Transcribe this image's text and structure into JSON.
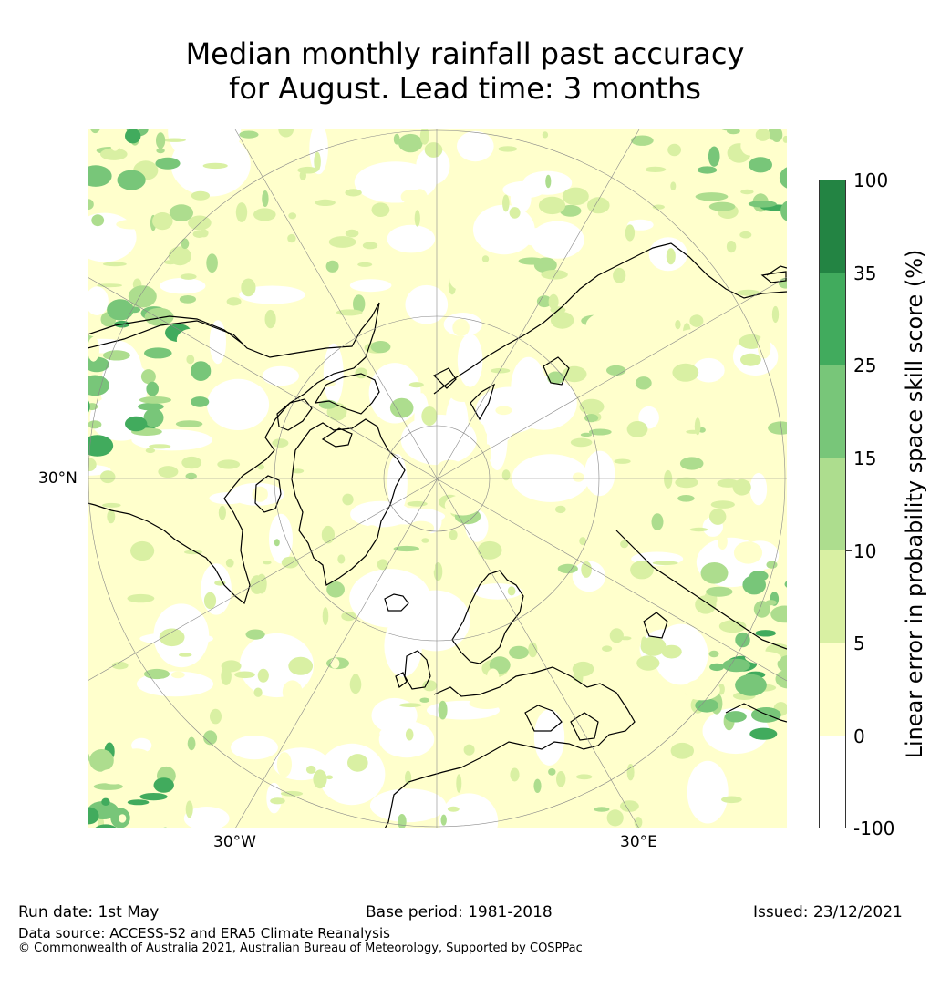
{
  "title": {
    "line1": "Median monthly rainfall past accuracy",
    "line2": "for August. Lead time: 3 months"
  },
  "map": {
    "projection": "north-polar-stereographic",
    "longitude_labels": [
      "30°W",
      "30°E"
    ],
    "latitude_labels": [
      "30°N"
    ],
    "colors": {
      "land_outline": "#000000",
      "grid": "#888888",
      "ocean_bg": "#ffffcc"
    }
  },
  "colorbar": {
    "title": "Linear error in probability space skill score (%)",
    "ticks": [
      "100",
      "35",
      "25",
      "15",
      "10",
      "5",
      "0",
      "-100"
    ],
    "bins": [
      {
        "range": "35 to 100",
        "color": "#238443"
      },
      {
        "range": "25 to 35",
        "color": "#41ab5d"
      },
      {
        "range": "15 to 25",
        "color": "#78c679"
      },
      {
        "range": "10 to 15",
        "color": "#addd8e"
      },
      {
        "range": "5 to 10",
        "color": "#d9f0a3"
      },
      {
        "range": "0 to 5",
        "color": "#ffffcc"
      },
      {
        "range": "-100 to 0",
        "color": "#ffffff"
      }
    ]
  },
  "footer": {
    "run_date": "Run date: 1st May",
    "base_period": "Base period: 1981-2018",
    "issued": "Issued: 23/12/2021",
    "data_source": "Data source: ACCESS-S2 and ERA5 Climate Reanalysis",
    "copyright": "© Commonwealth of Australia 2021, Australian Bureau of Meteorology, Supported by COSPPac"
  }
}
